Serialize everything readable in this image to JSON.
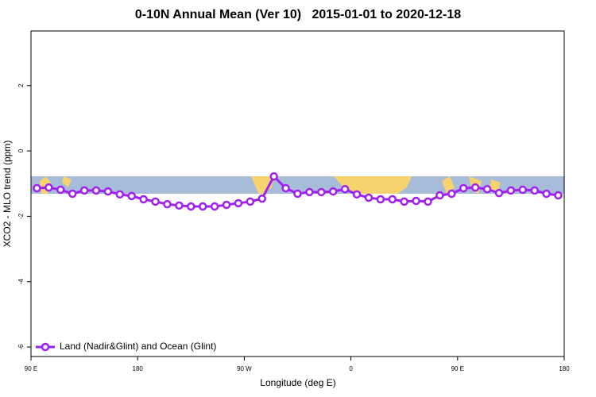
{
  "chart_data": {
    "type": "line",
    "title": "0-10N Annual Mean (Ver 10)   2015-01-01 to 2020-12-18",
    "x_label": "Longitude (deg E)",
    "y_label": "XCO2 - MLO trend (ppm)",
    "x": [
      95,
      105,
      115,
      125,
      135,
      145,
      155,
      165,
      175,
      185,
      195,
      205,
      215,
      225,
      235,
      245,
      255,
      265,
      275,
      285,
      295,
      305,
      315,
      325,
      335,
      345,
      355,
      365,
      375,
      385,
      395,
      405,
      415,
      425,
      435,
      445,
      455,
      465,
      475,
      485,
      495,
      505,
      515,
      525,
      535
    ],
    "series": [
      {
        "name": "Land (Nadir&Glint) and Ocean (Glint)",
        "color": "#a020f0",
        "values": [
          -1.14,
          -1.12,
          -1.19,
          -1.31,
          -1.21,
          -1.21,
          -1.24,
          -1.33,
          -1.38,
          -1.48,
          -1.55,
          -1.63,
          -1.67,
          -1.7,
          -1.7,
          -1.7,
          -1.65,
          -1.6,
          -1.55,
          -1.46,
          -0.78,
          -1.14,
          -1.31,
          -1.26,
          -1.26,
          -1.24,
          -1.17,
          -1.33,
          -1.43,
          -1.48,
          -1.48,
          -1.55,
          -1.53,
          -1.55,
          -1.36,
          -1.31,
          -1.14,
          -1.12,
          -1.17,
          -1.29,
          -1.21,
          -1.19,
          -1.21,
          -1.31,
          -1.36
        ]
      }
    ],
    "xlim": [
      90,
      540
    ],
    "xticks": [
      {
        "value": 90,
        "label": "90 E"
      },
      {
        "value": 180,
        "label": "180"
      },
      {
        "value": 270,
        "label": "90 W"
      },
      {
        "value": 360,
        "label": "0"
      },
      {
        "value": 450,
        "label": "90 E"
      },
      {
        "value": 540,
        "label": "180"
      }
    ],
    "ylim": [
      -6.29,
      3.67
    ],
    "yticks": [
      -6,
      -4,
      -2,
      0,
      2
    ],
    "legend_position": "bottom-left"
  }
}
